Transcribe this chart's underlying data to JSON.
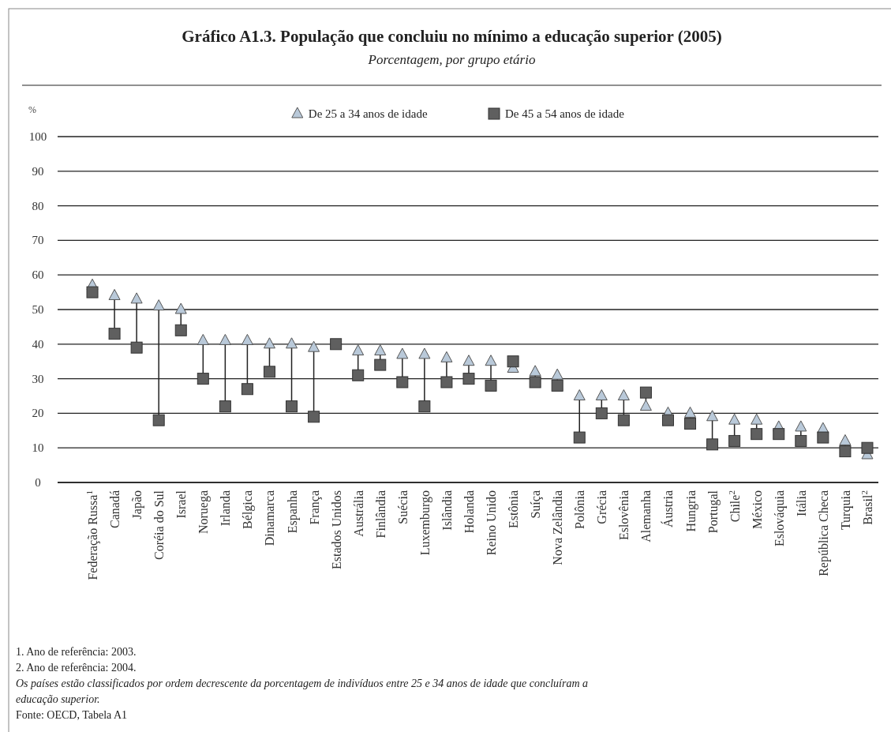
{
  "chart_data": {
    "type": "scatter",
    "title": "Gráfico A1.3. População que concluiu no mínimo a educação superior (2005)",
    "subtitle": "Porcentagem, por grupo etário",
    "ylabel": "%",
    "categories": [
      "Federação Russa$^{1}$",
      "Canadá",
      "Japão",
      "Coréia do Sul",
      "Israel",
      "Noruega",
      "Irlanda",
      "Bélgica",
      "Dinamarca",
      "Espanha",
      "França",
      "Estados Unidos",
      "Austrália",
      "Finlândia",
      "Suécia",
      "Luxemburgo",
      "Islândia",
      "Holanda",
      "Reino Unido",
      "Estônia",
      "Suíça",
      "Nova Zelândia",
      "Polônia",
      "Grécia",
      "Eslovênia",
      "Alemanha",
      "Áustria",
      "Hungria",
      "Portugal",
      "Chile$^{2}$",
      "México",
      "Eslováquia",
      "Itália",
      "República Checa",
      "Turquia",
      "Brasil$^{2}$"
    ],
    "series": [
      {
        "name": "De 25 a 34 anos de idade",
        "color": "#b9c9d9",
        "marker": "triangle",
        "values": [
          57,
          54,
          53,
          51,
          50,
          41,
          41,
          41,
          40,
          40,
          39,
          null,
          38,
          38,
          37,
          37,
          36,
          35,
          35,
          33,
          32,
          31,
          25,
          25,
          25,
          22,
          20,
          20,
          19,
          18,
          18,
          16,
          16,
          15.5,
          12,
          8
        ]
      },
      {
        "name": "De 45 a 54 anos de idade",
        "color": "#5f5f5f",
        "marker": "square",
        "values": [
          55,
          43,
          39,
          18,
          44,
          30,
          22,
          27,
          32,
          22,
          19,
          40,
          31,
          34,
          29,
          22,
          29,
          30,
          28,
          35,
          29,
          28,
          13,
          20,
          18,
          26,
          18,
          17,
          11,
          12,
          14,
          14,
          12,
          13,
          9,
          10
        ]
      }
    ],
    "ylim": [
      0,
      100
    ],
    "yticks": [
      0,
      10,
      20,
      30,
      40,
      50,
      60,
      70,
      80,
      90,
      100
    ],
    "grid": "y",
    "legend": "top",
    "annotations": [
      "1. Ano de referência: 2003.",
      "2. Ano de referência: 2004.",
      "Os países estão classificados por ordem decrescente da porcentagem de indivíduos entre 25 e 34 anos de idade que concluíram a educação superior.",
      "Fonte: OECD, Tabela A1"
    ]
  }
}
